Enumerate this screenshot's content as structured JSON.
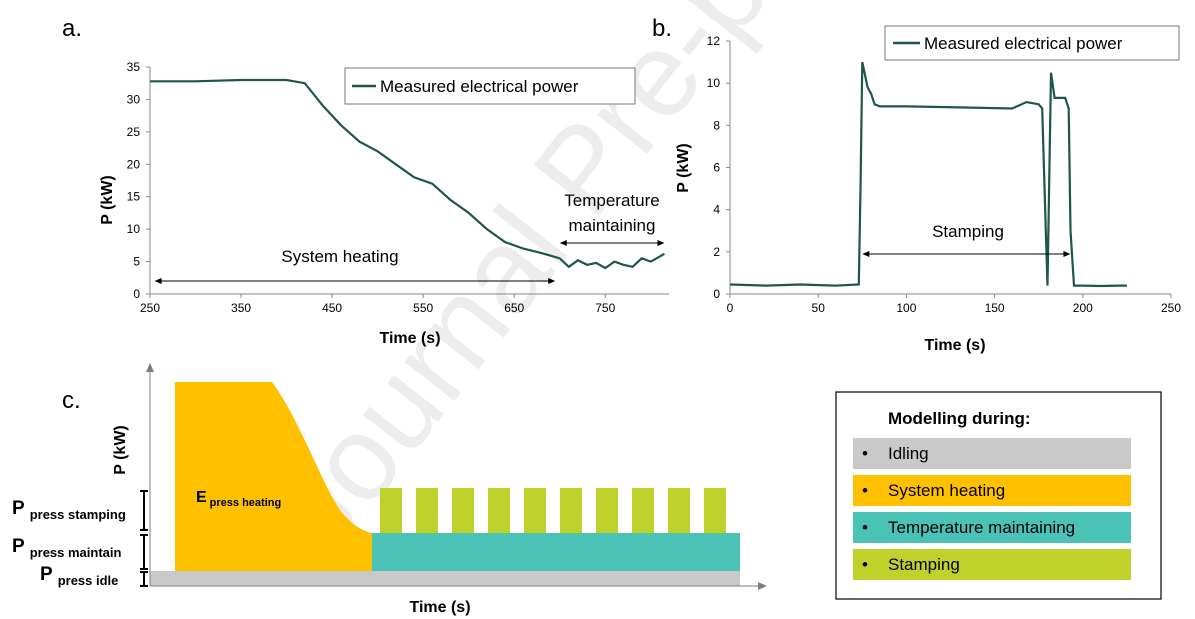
{
  "watermark": "Journal Pre-proof",
  "colors": {
    "line": "#1f5747",
    "heating": "#ffc000",
    "maintain": "#4bc2b6",
    "stamping": "#bfd22b",
    "idle": "#c9c9c9"
  },
  "chart_data": [
    {
      "panel": "a.",
      "type": "line",
      "xlabel": "Time (s)",
      "ylabel": "P (kW)",
      "xlim": [
        250,
        820
      ],
      "ylim": [
        0,
        35
      ],
      "xticks": [
        250,
        350,
        450,
        550,
        650,
        750
      ],
      "yticks": [
        0,
        5,
        10,
        15,
        20,
        25,
        30,
        35
      ],
      "legend": "Measured electrical power",
      "series": [
        {
          "name": "Measured electrical power",
          "x": [
            250,
            300,
            350,
            400,
            420,
            440,
            460,
            480,
            500,
            520,
            540,
            560,
            580,
            600,
            620,
            640,
            660,
            680,
            700,
            710,
            720,
            730,
            740,
            750,
            760,
            770,
            780,
            790,
            800,
            810,
            815
          ],
          "y": [
            32.8,
            32.8,
            33,
            33,
            32.5,
            29,
            26,
            23.5,
            22,
            20,
            18,
            17,
            14.5,
            12.5,
            10,
            8,
            7,
            6.3,
            5.5,
            4.2,
            5.2,
            4.5,
            4.8,
            4.0,
            5.0,
            4.5,
            4.2,
            5.5,
            5.0,
            5.8,
            6.2
          ]
        }
      ],
      "annotations": [
        {
          "text": "System heating",
          "from": 255,
          "to": 695
        },
        {
          "text": "Temperature maintaining",
          "from": 700,
          "to": 815
        }
      ]
    },
    {
      "panel": "b.",
      "type": "line",
      "xlabel": "Time (s)",
      "ylabel": "P (kW)",
      "xlim": [
        0,
        250
      ],
      "ylim": [
        0,
        12
      ],
      "xticks": [
        0,
        50,
        100,
        150,
        200,
        250
      ],
      "yticks": [
        0,
        2,
        4,
        6,
        8,
        10,
        12
      ],
      "legend": "Measured electrical power",
      "series": [
        {
          "name": "Measured electrical power",
          "x": [
            0,
            20,
            40,
            60,
            73,
            74,
            75,
            78,
            80,
            82,
            85,
            100,
            130,
            160,
            168,
            175,
            177,
            179,
            180,
            182,
            184,
            190,
            192,
            193,
            195,
            200,
            210,
            220,
            225
          ],
          "y": [
            0.45,
            0.4,
            0.45,
            0.4,
            0.45,
            5,
            11,
            9.8,
            9.5,
            9,
            8.9,
            8.9,
            8.85,
            8.8,
            9.1,
            9.0,
            8.8,
            3,
            0.4,
            10.5,
            9.3,
            9.3,
            8.8,
            3,
            0.4,
            0.4,
            0.38,
            0.4,
            0.4
          ]
        }
      ],
      "annotations": [
        {
          "text": "Stamping",
          "from": 75,
          "to": 193
        }
      ]
    },
    {
      "panel": "c.",
      "type": "area",
      "xlabel": "Time (s)",
      "ylabel": "P (kW)",
      "level_labels": {
        "stamping": {
          "main": "P",
          "sub": "press stamping"
        },
        "maintain": {
          "main": "P",
          "sub": "press maintain"
        },
        "idle": {
          "main": "P",
          "sub": "press idle"
        }
      },
      "heating_label": {
        "main": "E",
        "sub": "press heating"
      },
      "stamping_pulses": 10,
      "legend": {
        "title": "Modelling during:",
        "items": [
          {
            "label": "Idling",
            "color": "#c9c9c9"
          },
          {
            "label": "System heating",
            "color": "#ffc000"
          },
          {
            "label": "Temperature maintaining",
            "color": "#4bc2b6"
          },
          {
            "label": "Stamping",
            "color": "#bfd22b"
          }
        ]
      }
    }
  ]
}
